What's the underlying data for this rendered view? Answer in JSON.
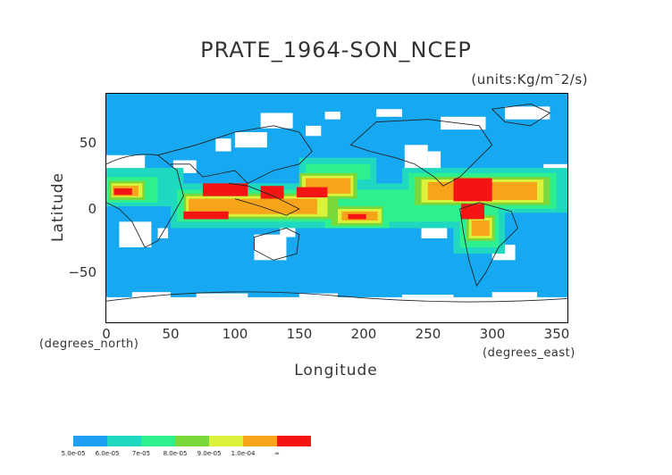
{
  "title": "PRATE_1964-SON_NCEP",
  "units": "(units:Kg/m¯2/s)",
  "axes": {
    "xlabel": "Longitude",
    "ylabel": "Latitude",
    "x_unit_note": "(degrees_east)",
    "y_unit_note": "(degrees_north)",
    "xticks": [
      "0",
      "50",
      "100",
      "150",
      "200",
      "250",
      "300",
      "350"
    ],
    "yticks": [
      "50",
      "0",
      "−50"
    ],
    "xlim": [
      0,
      360
    ],
    "ylim": [
      -90,
      90
    ]
  },
  "legend": {
    "labels": [
      "5.0e-05",
      "6.0e-05",
      "7e-05",
      "8.0e-05",
      "9.0e-05",
      "1.0e-04",
      "∞"
    ],
    "colors": [
      "#1ca0f2",
      "#1fd8c0",
      "#2ef08e",
      "#7ad83a",
      "#dcf23a",
      "#f8a41a",
      "#f41414"
    ]
  },
  "map_colors": {
    "background": "#16a8f0",
    "no_data": "#ffffff",
    "coast": "#222222"
  },
  "chart_data": {
    "type": "heatmap",
    "title": "PRATE_1964-SON_NCEP",
    "xlabel": "Longitude",
    "ylabel": "Latitude",
    "xlim": [
      0,
      360
    ],
    "ylim": [
      -90,
      90
    ],
    "color_levels": [
      "5.0e-05",
      "6.0e-05",
      "7e-05",
      "8.0e-05",
      "9.0e-05",
      "1.0e-04"
    ],
    "regions": [
      {
        "lon": [
          72,
          110
        ],
        "lat": [
          10,
          22
        ],
        "level": 5
      },
      {
        "lon": [
          60,
          95
        ],
        "lat": [
          -10,
          -2
        ],
        "level": 5
      },
      {
        "lon": [
          148,
          172
        ],
        "lat": [
          8,
          16
        ],
        "level": 5
      },
      {
        "lon": [
          118,
          138
        ],
        "lat": [
          6,
          18
        ],
        "level": 5
      },
      {
        "lon": [
          268,
          300
        ],
        "lat": [
          10,
          25
        ],
        "level": 5
      },
      {
        "lon": [
          275,
          295
        ],
        "lat": [
          -8,
          8
        ],
        "level": 5
      },
      {
        "lon": [
          0,
          25
        ],
        "lat": [
          5,
          15
        ],
        "level": 4
      },
      {
        "lon": [
          180,
          200
        ],
        "lat": [
          -12,
          -5
        ],
        "level": 4
      }
    ]
  }
}
